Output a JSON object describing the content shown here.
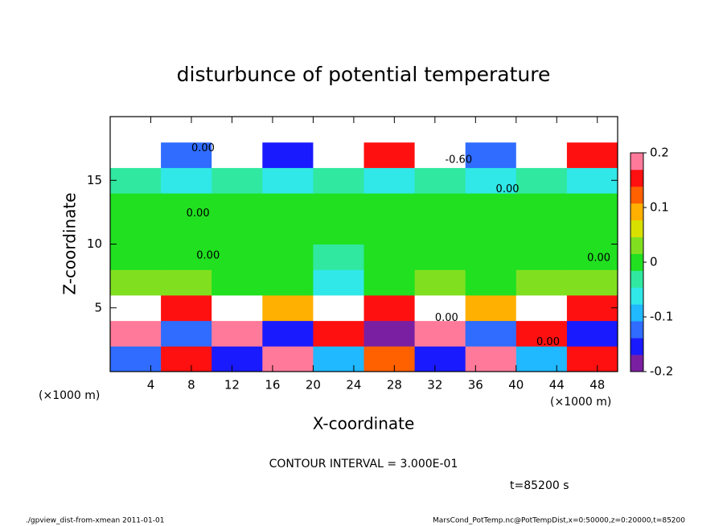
{
  "chart_data": {
    "type": "heatmap",
    "title": "disturbunce of potential temperature",
    "x_label": "X-coordinate",
    "y_label": "Z-coordinate",
    "x_unit": "(×1000 m)",
    "y_unit": "(×1000 m)",
    "contour_interval": "CONTOUR INTERVAL = 3.000E-01",
    "time_label": "t=85200 s",
    "footer_left": "./gpview_dist-from-xmean  2011-01-01",
    "footer_right": "MarsCond_PotTemp.nc@PotTempDist,x=0:50000,z=0:20000,t=85200",
    "xlim": [
      0,
      50
    ],
    "ylim": [
      0,
      20
    ],
    "xticks": [
      4,
      8,
      12,
      16,
      20,
      24,
      28,
      32,
      36,
      40,
      44,
      48
    ],
    "yticks": [
      5,
      10,
      15
    ],
    "x_edges": [
      0,
      5,
      10,
      15,
      20,
      25,
      30,
      35,
      40,
      45,
      50
    ],
    "y_edges": [
      0,
      2,
      4,
      6,
      8,
      10,
      12,
      14,
      16,
      18,
      20
    ],
    "values": [
      [
        -0.12,
        0.15,
        -0.15,
        0.2,
        -0.1,
        0.12,
        -0.15,
        0.18,
        -0.1,
        0.15
      ],
      [
        0.18,
        -0.12,
        0.2,
        -0.15,
        0.15,
        -0.18,
        0.2,
        -0.12,
        0.15,
        -0.15
      ],
      [
        0.25,
        0.15,
        0.25,
        0.1,
        0.25,
        0.15,
        0.25,
        0.1,
        0.25,
        0.15
      ],
      [
        0.02,
        0.02,
        0.01,
        0,
        -0.05,
        0.01,
        0.02,
        0.01,
        0.02,
        0.02
      ],
      [
        0,
        0.01,
        0,
        0,
        -0.02,
        0,
        0.01,
        0,
        0.01,
        0
      ],
      [
        0.01,
        0,
        0,
        -0.01,
        -0.01,
        0,
        0,
        0,
        0,
        0.01
      ],
      [
        0,
        0,
        0,
        0,
        0,
        0,
        0,
        0,
        0,
        0
      ],
      [
        -0.04,
        -0.05,
        -0.04,
        -0.05,
        -0.04,
        -0.05,
        -0.04,
        -0.05,
        -0.04,
        -0.05
      ],
      [
        0.25,
        -0.12,
        0.25,
        -0.15,
        0.25,
        0.15,
        0.25,
        -0.12,
        0.25,
        0.15
      ],
      [
        0.25,
        0.25,
        0.25,
        0.25,
        0.25,
        0.25,
        0.25,
        0.25,
        0.25,
        0.25
      ]
    ],
    "colorbar": {
      "lim": [
        -0.2,
        0.2
      ],
      "ticks": [
        -0.2,
        -0.1,
        0,
        0.1,
        0.2
      ],
      "colors": [
        "#7b1fa2",
        "#1a1aff",
        "#2f6cff",
        "#20b8ff",
        "#30e8e8",
        "#30e8a0",
        "#20e020",
        "#80e020",
        "#d8e000",
        "#ffb000",
        "#ff6000",
        "#ff1010",
        "#ff7a9a"
      ],
      "over_color": "#ffffff"
    },
    "contour_labels": [
      {
        "text": "0.00",
        "x": 8,
        "y": 17.5
      },
      {
        "text": "-0.60",
        "x": 33,
        "y": 16.6
      },
      {
        "text": "0.00",
        "x": 7.5,
        "y": 12.4
      },
      {
        "text": "0.00",
        "x": 8.5,
        "y": 9.1
      },
      {
        "text": "0.00",
        "x": 47,
        "y": 8.9
      },
      {
        "text": "0.00",
        "x": 38,
        "y": 14.3
      },
      {
        "text": "0.00",
        "x": 32,
        "y": 4.2
      },
      {
        "text": "0.00",
        "x": 42,
        "y": 2.3
      }
    ]
  }
}
